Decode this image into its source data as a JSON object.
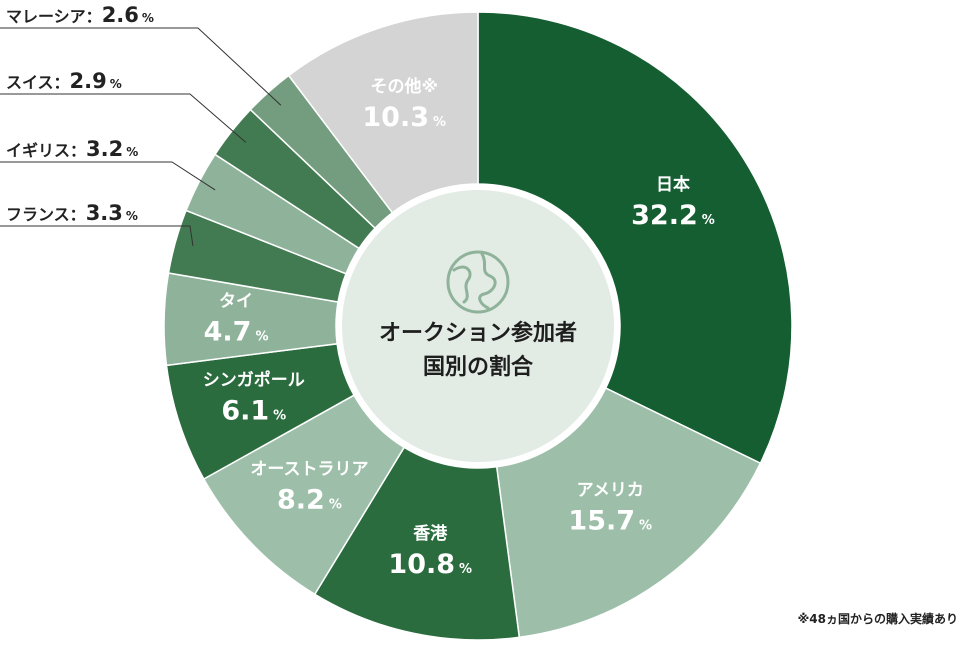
{
  "chart_data": {
    "type": "pie",
    "donut": true,
    "center_title": [
      "オークション参加者",
      "国別の割合"
    ],
    "unit": "%",
    "slices": [
      {
        "label": "日本",
        "value": 32.2,
        "color": "#155e32",
        "label_position": "inside"
      },
      {
        "label": "アメリカ",
        "value": 15.7,
        "color": "#9dbfa9",
        "label_position": "inside"
      },
      {
        "label": "香港",
        "value": 10.8,
        "color": "#2b6c3f",
        "label_position": "inside"
      },
      {
        "label": "オーストラリア",
        "value": 8.2,
        "color": "#9dbfa9",
        "label_position": "inside"
      },
      {
        "label": "シンガポール",
        "value": 6.1,
        "color": "#2b6c3f",
        "label_position": "inside"
      },
      {
        "label": "タイ",
        "value": 4.7,
        "color": "#8fb39a",
        "label_position": "inside"
      },
      {
        "label": "フランス",
        "value": 3.3,
        "color": "#427b52",
        "label_position": "outside"
      },
      {
        "label": "イギリス",
        "value": 3.2,
        "color": "#8fb39a",
        "label_position": "outside"
      },
      {
        "label": "スイス",
        "value": 2.9,
        "color": "#427b52",
        "label_position": "outside"
      },
      {
        "label": "マレーシア",
        "value": 2.6,
        "color": "#739d7e",
        "label_position": "outside"
      },
      {
        "label": "その他※",
        "value": 10.3,
        "color": "#d4d4d4",
        "label_position": "inside"
      }
    ]
  },
  "footnote": "※48ヵ国からの購入実績あり"
}
